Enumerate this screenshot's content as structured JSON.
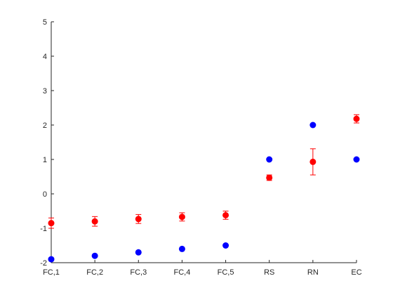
{
  "chart_data": {
    "type": "scatter",
    "title": "",
    "xlabel": "",
    "ylabel": "",
    "categories": [
      "FC,1",
      "FC,2",
      "FC,3",
      "FC,4",
      "FC,5",
      "RS",
      "RN",
      "EC"
    ],
    "ylim": [
      -2,
      5
    ],
    "yticks": [
      "-2",
      "-1",
      "0",
      "1",
      "2",
      "3",
      "4",
      "5"
    ],
    "grid": false,
    "series": [
      {
        "color": "#0000ff",
        "values": [
          -1.9,
          -1.8,
          -1.7,
          -1.6,
          -1.5,
          1.0,
          2.0,
          1.0
        ]
      },
      {
        "color": "#ff0000",
        "values": [
          -0.85,
          -0.8,
          -0.73,
          -0.67,
          -0.62,
          0.47,
          0.93,
          2.18
        ],
        "error": [
          0.15,
          0.14,
          0.13,
          0.12,
          0.12,
          0.08,
          0.38,
          0.12
        ]
      }
    ]
  }
}
